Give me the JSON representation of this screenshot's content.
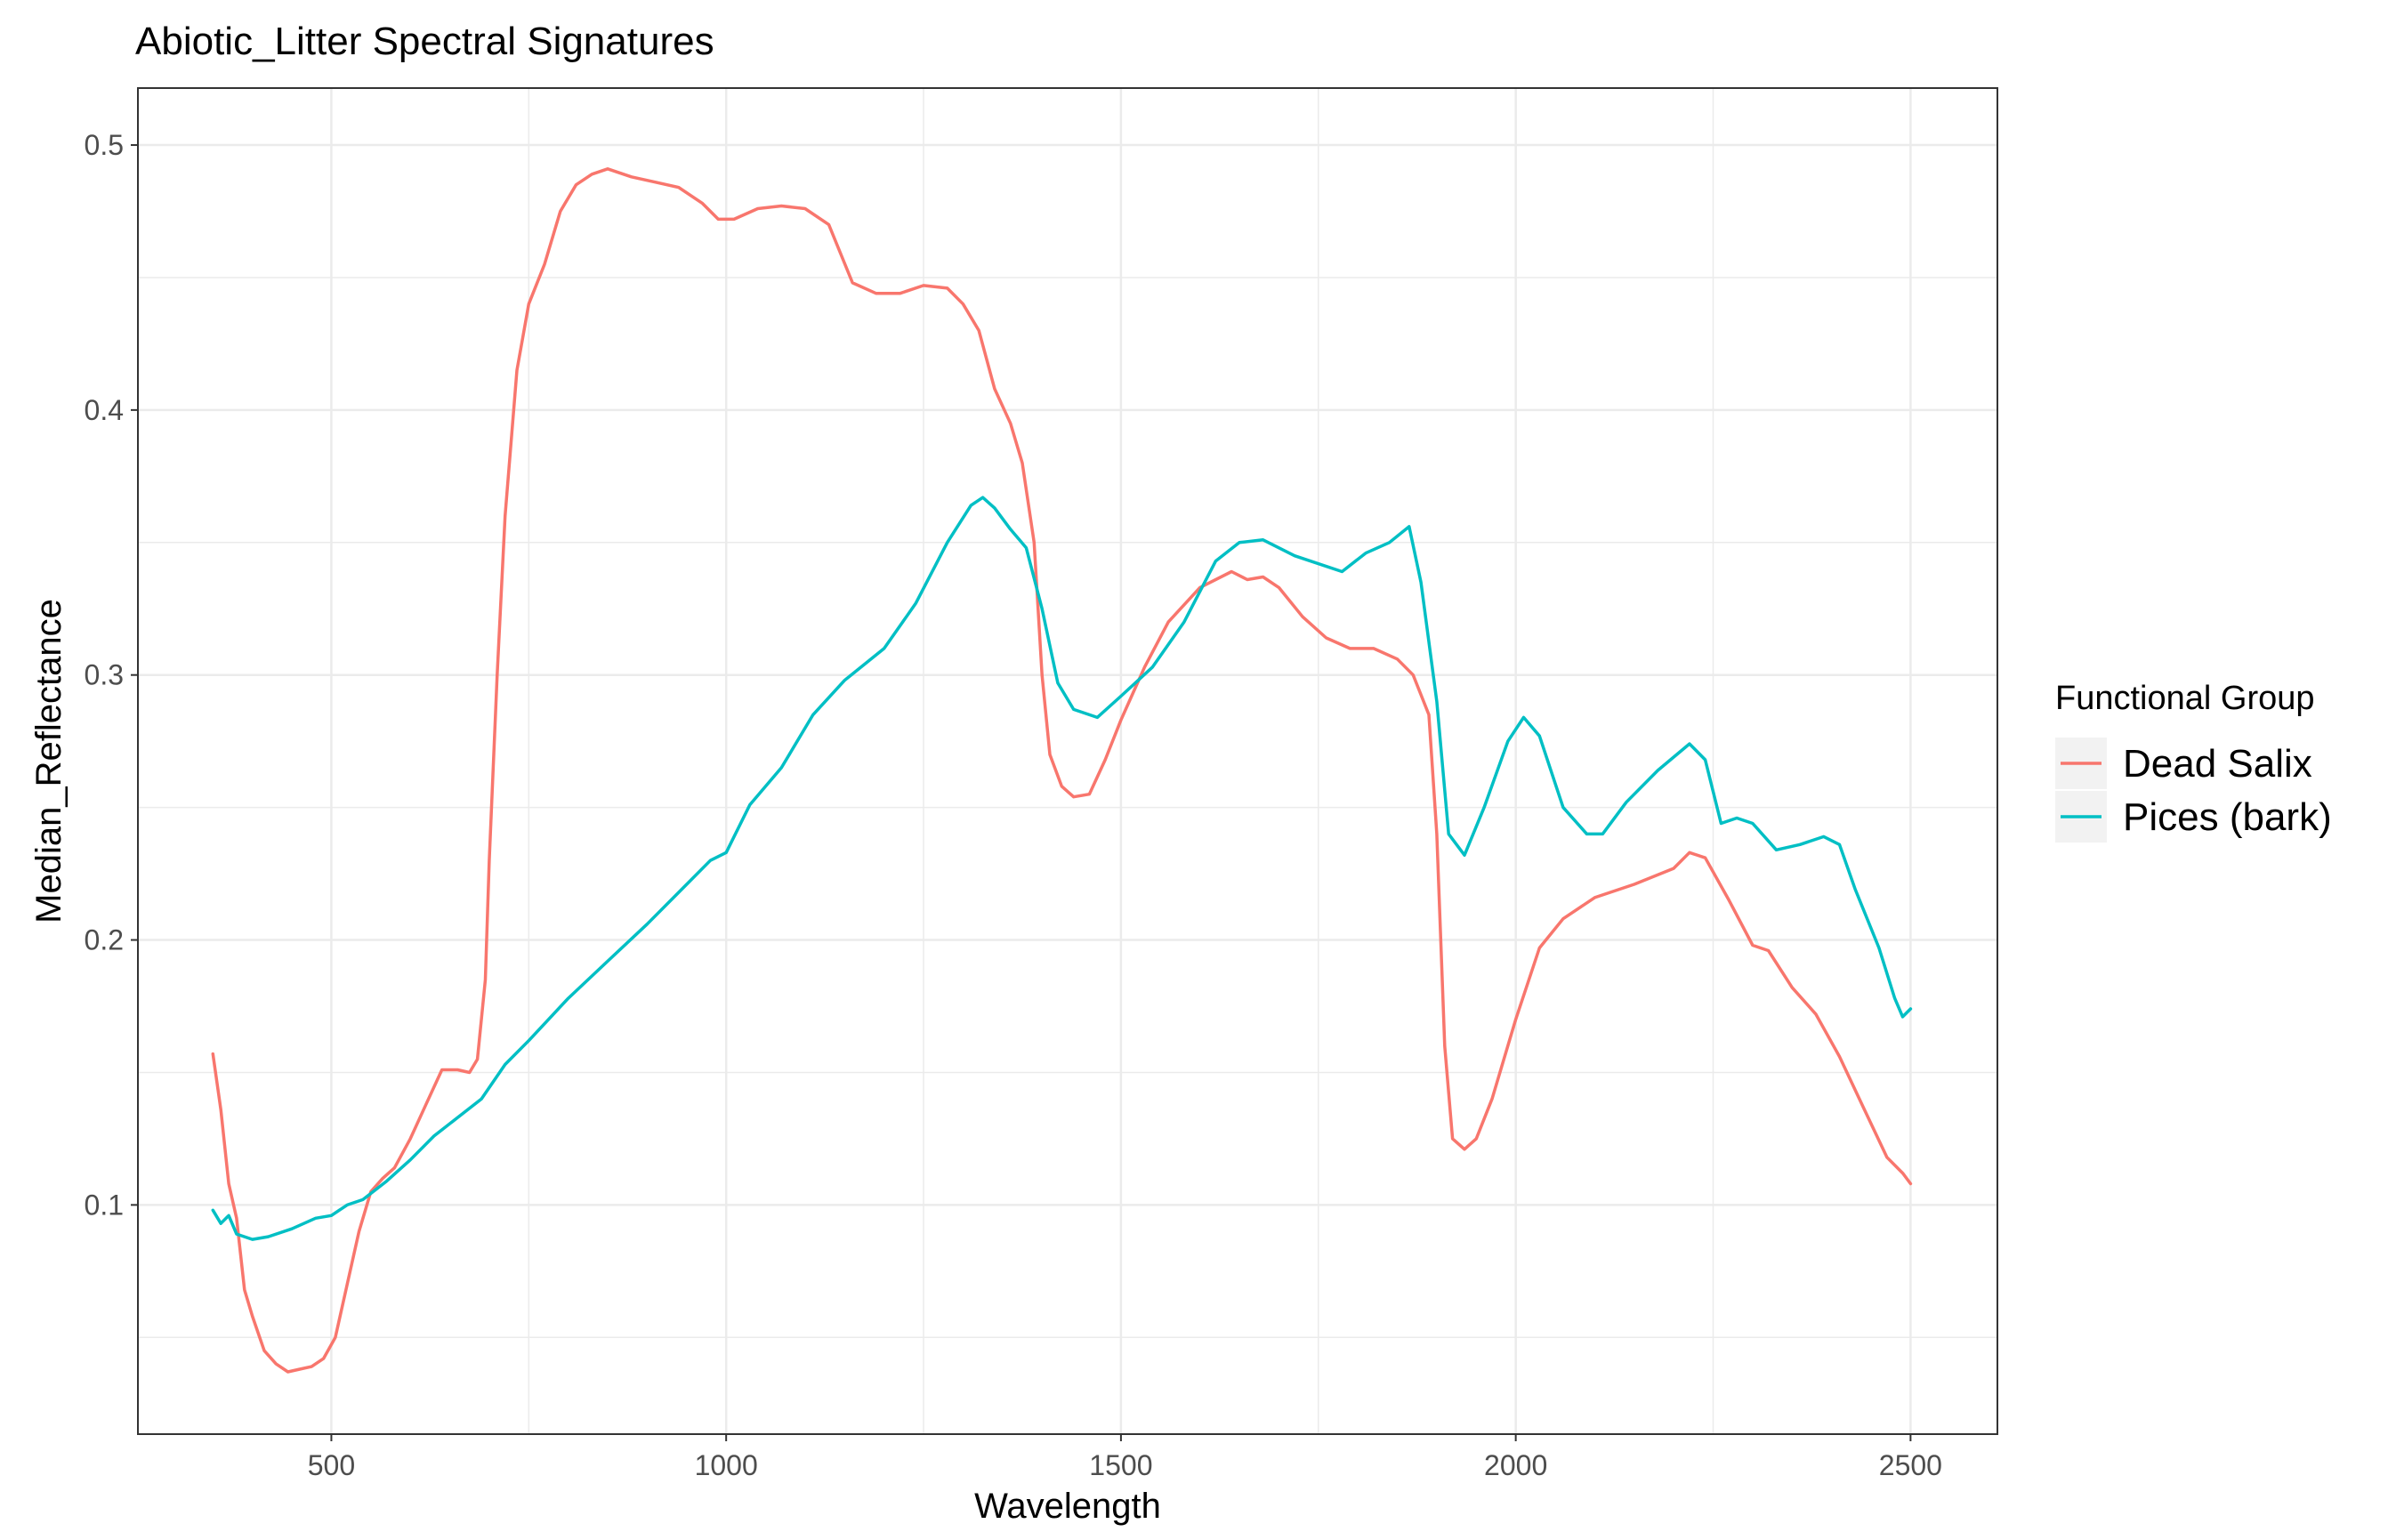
{
  "chart_data": {
    "type": "line",
    "title": "Abiotic_Litter Spectral Signatures",
    "xlabel": "Wavelength",
    "ylabel": "Median_Reflectance",
    "xlim": [
      255,
      2610
    ],
    "ylim": [
      0.0135,
      0.5215
    ],
    "x_ticks": [
      500,
      1000,
      1500,
      2000,
      2500
    ],
    "y_ticks": [
      0.1,
      0.2,
      0.3,
      0.4,
      0.5
    ],
    "grid": true,
    "legend": {
      "title": "Functional Group",
      "position": "right"
    },
    "series": [
      {
        "name": "Dead Salix",
        "color": "#F8766D",
        "points": [
          [
            350,
            0.157
          ],
          [
            360,
            0.136
          ],
          [
            370,
            0.108
          ],
          [
            380,
            0.095
          ],
          [
            390,
            0.068
          ],
          [
            400,
            0.058
          ],
          [
            415,
            0.045
          ],
          [
            430,
            0.04
          ],
          [
            445,
            0.037
          ],
          [
            460,
            0.038
          ],
          [
            475,
            0.039
          ],
          [
            490,
            0.042
          ],
          [
            505,
            0.05
          ],
          [
            520,
            0.07
          ],
          [
            535,
            0.09
          ],
          [
            550,
            0.105
          ],
          [
            565,
            0.11
          ],
          [
            580,
            0.114
          ],
          [
            600,
            0.125
          ],
          [
            620,
            0.138
          ],
          [
            640,
            0.151
          ],
          [
            660,
            0.151
          ],
          [
            675,
            0.15
          ],
          [
            685,
            0.155
          ],
          [
            695,
            0.185
          ],
          [
            700,
            0.23
          ],
          [
            710,
            0.3
          ],
          [
            720,
            0.36
          ],
          [
            735,
            0.415
          ],
          [
            750,
            0.44
          ],
          [
            770,
            0.455
          ],
          [
            790,
            0.475
          ],
          [
            810,
            0.485
          ],
          [
            830,
            0.489
          ],
          [
            850,
            0.491
          ],
          [
            880,
            0.488
          ],
          [
            910,
            0.486
          ],
          [
            940,
            0.484
          ],
          [
            970,
            0.478
          ],
          [
            990,
            0.472
          ],
          [
            1010,
            0.472
          ],
          [
            1040,
            0.476
          ],
          [
            1070,
            0.477
          ],
          [
            1100,
            0.476
          ],
          [
            1130,
            0.47
          ],
          [
            1160,
            0.448
          ],
          [
            1190,
            0.444
          ],
          [
            1220,
            0.444
          ],
          [
            1250,
            0.447
          ],
          [
            1280,
            0.446
          ],
          [
            1300,
            0.44
          ],
          [
            1320,
            0.43
          ],
          [
            1340,
            0.408
          ],
          [
            1360,
            0.395
          ],
          [
            1375,
            0.38
          ],
          [
            1390,
            0.35
          ],
          [
            1400,
            0.3
          ],
          [
            1410,
            0.27
          ],
          [
            1425,
            0.258
          ],
          [
            1440,
            0.254
          ],
          [
            1460,
            0.255
          ],
          [
            1480,
            0.268
          ],
          [
            1500,
            0.283
          ],
          [
            1530,
            0.303
          ],
          [
            1560,
            0.32
          ],
          [
            1600,
            0.333
          ],
          [
            1640,
            0.339
          ],
          [
            1660,
            0.336
          ],
          [
            1680,
            0.337
          ],
          [
            1700,
            0.333
          ],
          [
            1730,
            0.322
          ],
          [
            1760,
            0.314
          ],
          [
            1790,
            0.31
          ],
          [
            1820,
            0.31
          ],
          [
            1850,
            0.306
          ],
          [
            1870,
            0.3
          ],
          [
            1890,
            0.285
          ],
          [
            1900,
            0.24
          ],
          [
            1910,
            0.16
          ],
          [
            1920,
            0.125
          ],
          [
            1935,
            0.121
          ],
          [
            1950,
            0.125
          ],
          [
            1970,
            0.14
          ],
          [
            2000,
            0.17
          ],
          [
            2030,
            0.197
          ],
          [
            2060,
            0.208
          ],
          [
            2100,
            0.216
          ],
          [
            2150,
            0.221
          ],
          [
            2200,
            0.227
          ],
          [
            2220,
            0.233
          ],
          [
            2240,
            0.231
          ],
          [
            2270,
            0.215
          ],
          [
            2300,
            0.198
          ],
          [
            2320,
            0.196
          ],
          [
            2350,
            0.182
          ],
          [
            2380,
            0.172
          ],
          [
            2410,
            0.156
          ],
          [
            2440,
            0.137
          ],
          [
            2470,
            0.118
          ],
          [
            2490,
            0.112
          ],
          [
            2500,
            0.108
          ]
        ]
      },
      {
        "name": "Pices (bark)",
        "color": "#00BFC4",
        "points": [
          [
            350,
            0.098
          ],
          [
            360,
            0.093
          ],
          [
            370,
            0.096
          ],
          [
            380,
            0.089
          ],
          [
            400,
            0.087
          ],
          [
            420,
            0.088
          ],
          [
            450,
            0.091
          ],
          [
            480,
            0.095
          ],
          [
            500,
            0.096
          ],
          [
            520,
            0.1
          ],
          [
            540,
            0.102
          ],
          [
            570,
            0.109
          ],
          [
            600,
            0.117
          ],
          [
            630,
            0.126
          ],
          [
            660,
            0.133
          ],
          [
            690,
            0.14
          ],
          [
            720,
            0.153
          ],
          [
            750,
            0.162
          ],
          [
            800,
            0.178
          ],
          [
            850,
            0.192
          ],
          [
            900,
            0.206
          ],
          [
            950,
            0.221
          ],
          [
            980,
            0.23
          ],
          [
            1000,
            0.233
          ],
          [
            1030,
            0.251
          ],
          [
            1070,
            0.265
          ],
          [
            1110,
            0.285
          ],
          [
            1150,
            0.298
          ],
          [
            1200,
            0.31
          ],
          [
            1240,
            0.327
          ],
          [
            1280,
            0.35
          ],
          [
            1310,
            0.364
          ],
          [
            1325,
            0.367
          ],
          [
            1340,
            0.363
          ],
          [
            1360,
            0.355
          ],
          [
            1380,
            0.348
          ],
          [
            1400,
            0.325
          ],
          [
            1420,
            0.297
          ],
          [
            1440,
            0.287
          ],
          [
            1470,
            0.284
          ],
          [
            1500,
            0.292
          ],
          [
            1540,
            0.303
          ],
          [
            1580,
            0.32
          ],
          [
            1620,
            0.343
          ],
          [
            1650,
            0.35
          ],
          [
            1680,
            0.351
          ],
          [
            1720,
            0.345
          ],
          [
            1780,
            0.339
          ],
          [
            1810,
            0.346
          ],
          [
            1840,
            0.35
          ],
          [
            1865,
            0.356
          ],
          [
            1880,
            0.335
          ],
          [
            1900,
            0.29
          ],
          [
            1915,
            0.24
          ],
          [
            1935,
            0.232
          ],
          [
            1960,
            0.25
          ],
          [
            1990,
            0.275
          ],
          [
            2010,
            0.284
          ],
          [
            2030,
            0.277
          ],
          [
            2060,
            0.25
          ],
          [
            2090,
            0.24
          ],
          [
            2110,
            0.24
          ],
          [
            2140,
            0.252
          ],
          [
            2180,
            0.264
          ],
          [
            2220,
            0.274
          ],
          [
            2240,
            0.268
          ],
          [
            2260,
            0.244
          ],
          [
            2280,
            0.246
          ],
          [
            2300,
            0.244
          ],
          [
            2330,
            0.234
          ],
          [
            2360,
            0.236
          ],
          [
            2390,
            0.239
          ],
          [
            2410,
            0.236
          ],
          [
            2430,
            0.219
          ],
          [
            2460,
            0.197
          ],
          [
            2480,
            0.178
          ],
          [
            2490,
            0.171
          ],
          [
            2500,
            0.174
          ]
        ]
      }
    ]
  }
}
